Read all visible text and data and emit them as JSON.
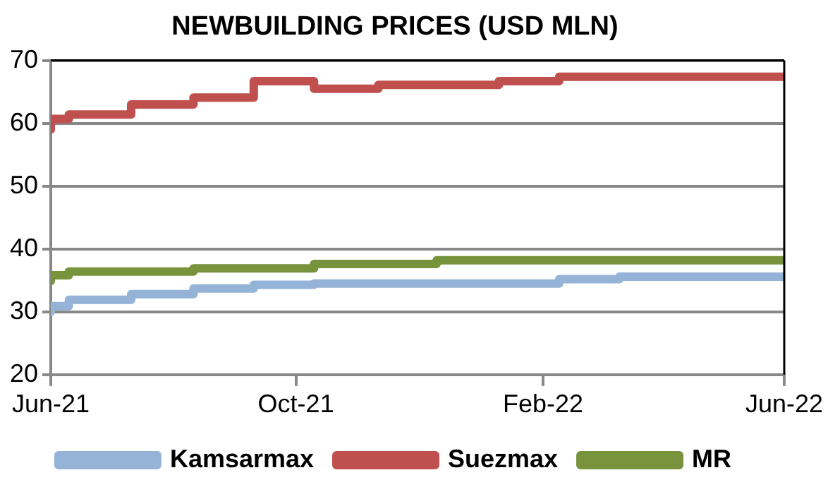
{
  "chart_data": {
    "type": "step",
    "title": "NEWBUILDING PRICES (USD MLN)",
    "xlim": [
      "2021-06-01",
      "2022-06-01"
    ],
    "xticks": [
      {
        "value": "2021-06-01",
        "label": "Jun-21"
      },
      {
        "value": "2021-10-01",
        "label": "Oct-21"
      },
      {
        "value": "2022-02-01",
        "label": "Feb-22"
      },
      {
        "value": "2022-06-01",
        "label": "Jun-22"
      }
    ],
    "ylim": [
      20,
      70
    ],
    "yticks": [
      20,
      30,
      40,
      50,
      60,
      70
    ],
    "grid": "y",
    "legend": "bottom",
    "marker": "none",
    "line_style": "solid",
    "series": [
      {
        "name": "Kamsarmax",
        "color": "#95b3d7",
        "x": [
          "2021-06-01",
          "2021-06-10",
          "2021-07-11",
          "2021-08-11",
          "2021-09-10",
          "2021-10-10",
          "2022-02-09",
          "2022-03-11",
          "2022-04-11",
          "2022-06-01"
        ],
        "values": [
          30,
          30.9,
          31.9,
          32.8,
          33.7,
          34.3,
          34.5,
          35.2,
          35.6,
          35.6
        ]
      },
      {
        "name": "Suezmax",
        "color": "#c0504d",
        "x": [
          "2021-06-01",
          "2021-06-10",
          "2021-07-11",
          "2021-08-11",
          "2021-09-10",
          "2021-10-10",
          "2021-11-11",
          "2022-01-10",
          "2022-02-09",
          "2022-03-11",
          "2022-06-01"
        ],
        "values": [
          59,
          60.7,
          61.4,
          63,
          64.1,
          66.7,
          65.5,
          66.1,
          66.7,
          67.4,
          67.4
        ]
      },
      {
        "name": "MR",
        "color": "#77933c",
        "x": [
          "2021-06-01",
          "2021-06-10",
          "2021-08-11",
          "2021-10-10",
          "2021-12-10",
          "2022-03-11",
          "2022-06-01"
        ],
        "values": [
          34.9,
          35.8,
          36.4,
          36.9,
          37.6,
          38.2,
          38.2
        ]
      }
    ]
  }
}
